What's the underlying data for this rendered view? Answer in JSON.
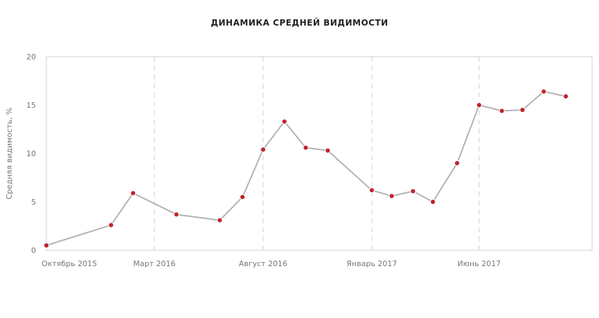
{
  "chart_data": {
    "type": "line",
    "title": "ДИНАМИКА СРЕДНЕЙ ВИДИМОСТИ",
    "xlabel": "",
    "ylabel": "Средняя видимость, %",
    "ylim": [
      0,
      20
    ],
    "xlim": [
      "2015-10-01",
      "2017-11-07"
    ],
    "y_ticks": [
      "0",
      "5",
      "10",
      "15",
      "20"
    ],
    "x_ticks": [
      {
        "label": "Октябрь 2015",
        "date": "2015-10-01"
      },
      {
        "label": "Март 2016",
        "date": "2016-03-01"
      },
      {
        "label": "Август 2016",
        "date": "2016-08-01"
      },
      {
        "label": "Январь 2017",
        "date": "2017-01-01"
      },
      {
        "label": "Июнь 2017",
        "date": "2017-06-01"
      }
    ],
    "x_gridlines": [
      "2016-03-01",
      "2016-08-01",
      "2017-01-01",
      "2017-06-01"
    ],
    "series": [
      {
        "points": [
          {
            "x": "2015-10-01",
            "y": 0.5
          },
          {
            "x": "2015-12-31",
            "y": 2.6
          },
          {
            "x": "2016-01-31",
            "y": 5.9
          },
          {
            "x": "2016-04-01",
            "y": 3.7
          },
          {
            "x": "2016-06-01",
            "y": 3.1
          },
          {
            "x": "2016-07-03",
            "y": 5.5
          },
          {
            "x": "2016-08-01",
            "y": 10.4
          },
          {
            "x": "2016-08-31",
            "y": 13.3
          },
          {
            "x": "2016-09-30",
            "y": 10.6
          },
          {
            "x": "2016-10-31",
            "y": 10.3
          },
          {
            "x": "2017-01-01",
            "y": 6.2
          },
          {
            "x": "2017-01-29",
            "y": 5.6
          },
          {
            "x": "2017-02-28",
            "y": 6.1
          },
          {
            "x": "2017-03-28",
            "y": 5.0
          },
          {
            "x": "2017-05-01",
            "y": 9.0
          },
          {
            "x": "2017-06-01",
            "y": 15.0
          },
          {
            "x": "2017-07-03",
            "y": 14.4
          },
          {
            "x": "2017-08-01",
            "y": 14.5
          },
          {
            "x": "2017-08-31",
            "y": 16.4
          },
          {
            "x": "2017-10-01",
            "y": 15.9
          }
        ]
      }
    ],
    "grid": {
      "x": true,
      "y": false
    },
    "colors": {
      "line": "#b3b3b3",
      "marker": "#c0242c",
      "marker_stroke": "#ffffff",
      "grid": "#d6d6d6",
      "axis": "#d0d0d0"
    }
  }
}
